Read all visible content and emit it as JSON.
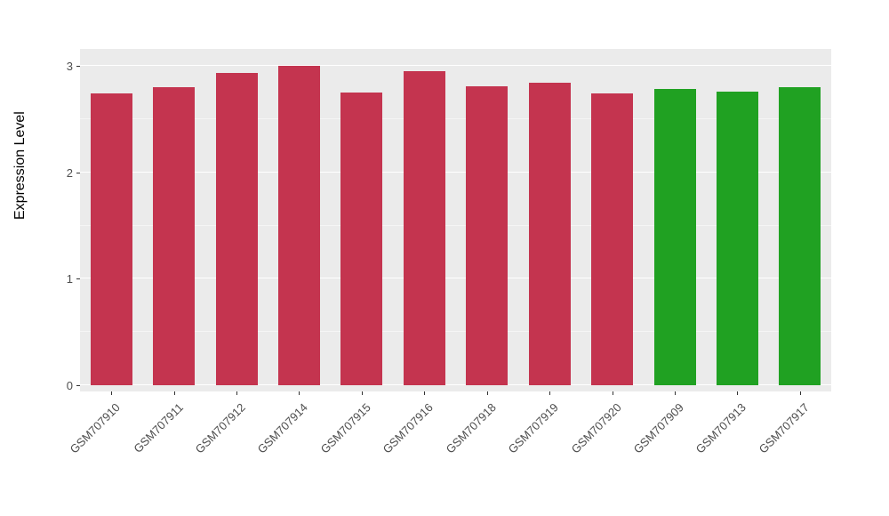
{
  "chart_data": {
    "type": "bar",
    "title": "",
    "xlabel": "",
    "ylabel": "Expression Level",
    "ylim": [
      0,
      3.16
    ],
    "yticks": [
      0,
      1,
      2,
      3
    ],
    "ytick_labels": [
      "0",
      "1",
      "2",
      "3"
    ],
    "minor_gridlines": [
      0.5,
      1.5,
      2.5
    ],
    "grid": true,
    "legend_position": "none",
    "panel_background": "#EBEBEB",
    "major_grid_color": "#FFFFFF",
    "minor_grid_color": "#F5F5F5",
    "tick_label_color": "#4D4D4D",
    "categories": [
      "GSM707910",
      "GSM707911",
      "GSM707912",
      "GSM707914",
      "GSM707915",
      "GSM707916",
      "GSM707918",
      "GSM707919",
      "GSM707920",
      "GSM707909",
      "GSM707913",
      "GSM707917"
    ],
    "values": [
      2.74,
      2.8,
      2.93,
      3.0,
      2.75,
      2.95,
      2.81,
      2.84,
      2.74,
      2.78,
      2.76,
      2.8
    ],
    "bar_colors": [
      "#C4344F",
      "#C4344F",
      "#C4344F",
      "#C4344F",
      "#C4344F",
      "#C4344F",
      "#C4344F",
      "#C4344F",
      "#C4344F",
      "#20A122",
      "#20A122",
      "#20A122"
    ],
    "group_colors": {
      "red": "#C4344F",
      "green": "#20A122"
    }
  }
}
